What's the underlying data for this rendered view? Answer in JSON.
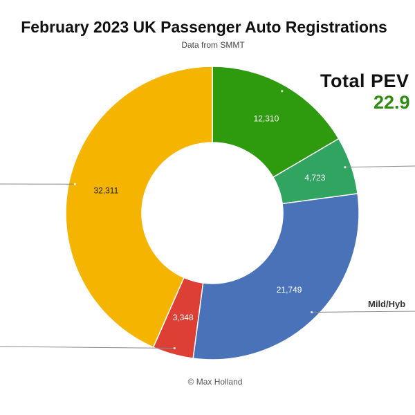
{
  "chart_data": {
    "type": "pie",
    "title": "February 2023 UK Passenger Auto Registrations",
    "subtitle": "Data from SMMT",
    "credit": "© Max Holland",
    "callouts": {
      "total_pev_label": "Total PEV",
      "total_pev_value": "22.9",
      "mild_hybrid_label": "Mild/Hyb"
    },
    "slices": [
      {
        "value": 12310,
        "label": "12,310",
        "color": "#2e9a0e"
      },
      {
        "value": 4723,
        "label": "4,723",
        "color": "#30a460"
      },
      {
        "value": 21749,
        "label": "21,749",
        "color": "#4a72b8"
      },
      {
        "value": 3348,
        "label": "3,348",
        "color": "#dd3f34"
      },
      {
        "value": 32311,
        "label": "32,311",
        "color": "#f4b400"
      }
    ]
  }
}
